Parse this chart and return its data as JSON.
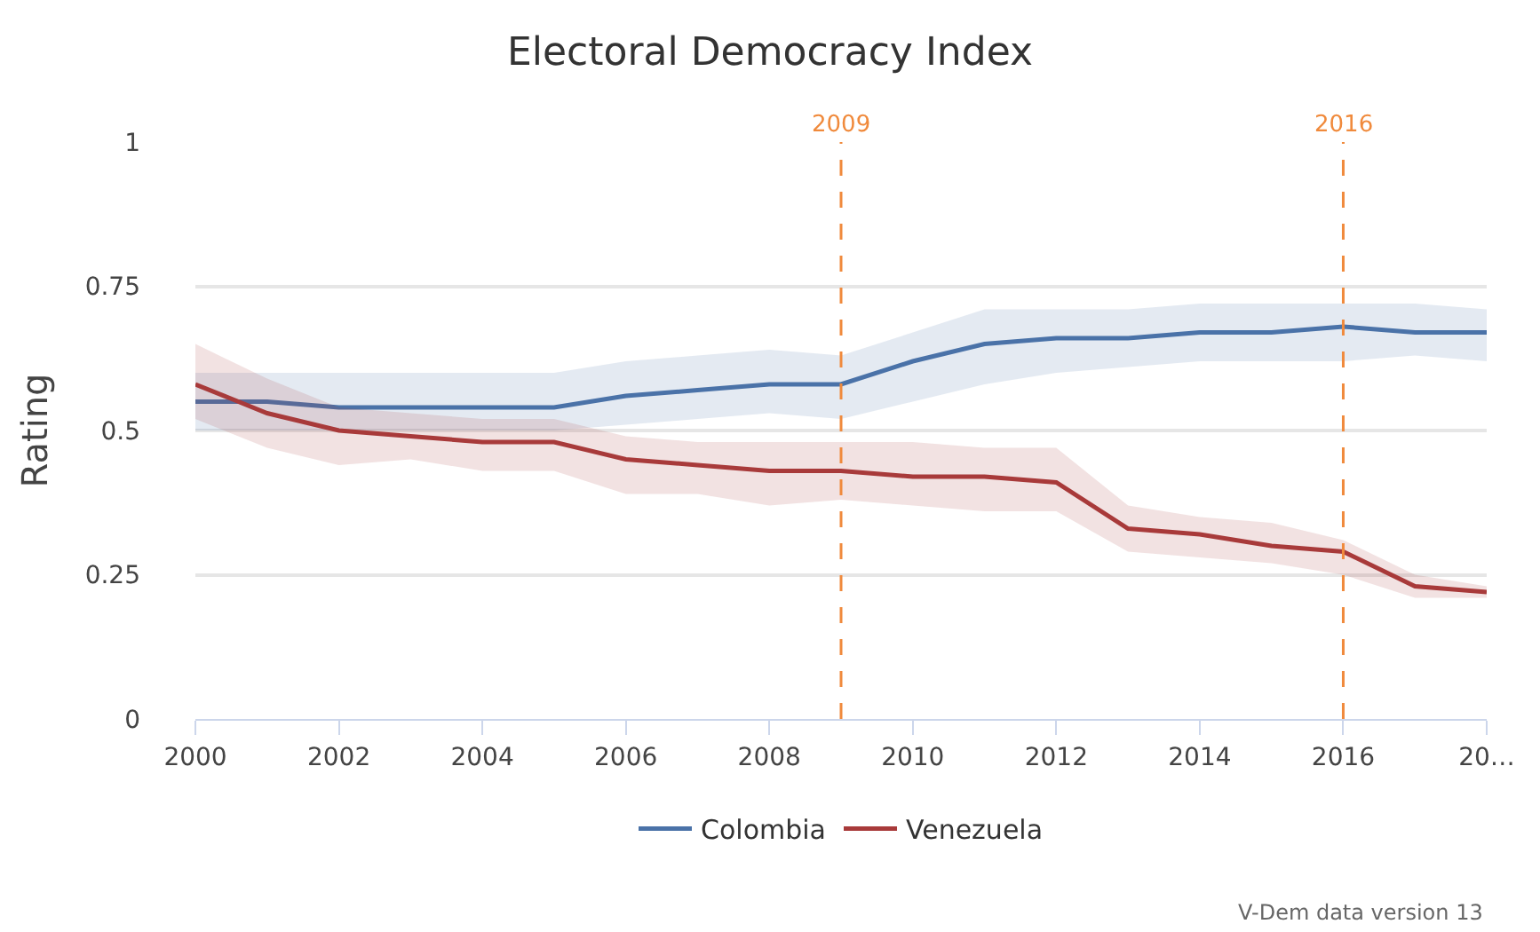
{
  "chart_data": {
    "type": "line",
    "title": "Electoral Democracy Index",
    "ylabel": "Rating",
    "x": [
      2000,
      2001,
      2002,
      2003,
      2004,
      2005,
      2006,
      2007,
      2008,
      2009,
      2010,
      2011,
      2012,
      2013,
      2014,
      2015,
      2016,
      2017,
      2018
    ],
    "series": [
      {
        "name": "Colombia",
        "color": "#4a72a8",
        "values": [
          0.55,
          0.55,
          0.54,
          0.54,
          0.54,
          0.54,
          0.56,
          0.57,
          0.58,
          0.58,
          0.62,
          0.65,
          0.66,
          0.66,
          0.67,
          0.67,
          0.68,
          0.67,
          0.67
        ],
        "lower": [
          0.5,
          0.5,
          0.5,
          0.5,
          0.5,
          0.5,
          0.51,
          0.52,
          0.53,
          0.52,
          0.55,
          0.58,
          0.6,
          0.61,
          0.62,
          0.62,
          0.62,
          0.63,
          0.62
        ],
        "upper": [
          0.6,
          0.6,
          0.6,
          0.6,
          0.6,
          0.6,
          0.62,
          0.63,
          0.64,
          0.63,
          0.67,
          0.71,
          0.71,
          0.71,
          0.72,
          0.72,
          0.72,
          0.72,
          0.71
        ]
      },
      {
        "name": "Venezuela",
        "color": "#a83a3a",
        "values": [
          0.58,
          0.53,
          0.5,
          0.49,
          0.48,
          0.48,
          0.45,
          0.44,
          0.43,
          0.43,
          0.42,
          0.42,
          0.41,
          0.33,
          0.32,
          0.3,
          0.29,
          0.23,
          0.22
        ],
        "lower": [
          0.52,
          0.47,
          0.44,
          0.45,
          0.43,
          0.43,
          0.39,
          0.39,
          0.37,
          0.38,
          0.37,
          0.36,
          0.36,
          0.29,
          0.28,
          0.27,
          0.25,
          0.21,
          0.21
        ],
        "upper": [
          0.65,
          0.59,
          0.54,
          0.53,
          0.52,
          0.52,
          0.49,
          0.48,
          0.48,
          0.48,
          0.48,
          0.47,
          0.47,
          0.37,
          0.35,
          0.34,
          0.31,
          0.25,
          0.23
        ]
      }
    ],
    "xlim": [
      2000,
      2018
    ],
    "xticks": [
      2000,
      2002,
      2004,
      2006,
      2008,
      2010,
      2012,
      2014,
      2016,
      {
        "value": 2018,
        "label": "20…"
      }
    ],
    "ylim": [
      0,
      1
    ],
    "yticks": [
      0,
      {
        "value": 0.25,
        "label": "0.25"
      },
      {
        "value": 0.5,
        "label": "0.5"
      },
      {
        "value": 0.75,
        "label": "0.75"
      },
      1
    ],
    "ref_lines": [
      {
        "axis": "x",
        "value": 2009,
        "label": "2009",
        "color": "#f08a3c",
        "line_style": "dashed"
      },
      {
        "axis": "x",
        "value": 2016,
        "label": "2016",
        "color": "#f08a3c",
        "line_style": "dashed"
      }
    ],
    "annotations": [
      "V-Dem data version 13"
    ],
    "grid": "y",
    "legend": "bottom",
    "marker": "none",
    "line_style": "solid"
  }
}
